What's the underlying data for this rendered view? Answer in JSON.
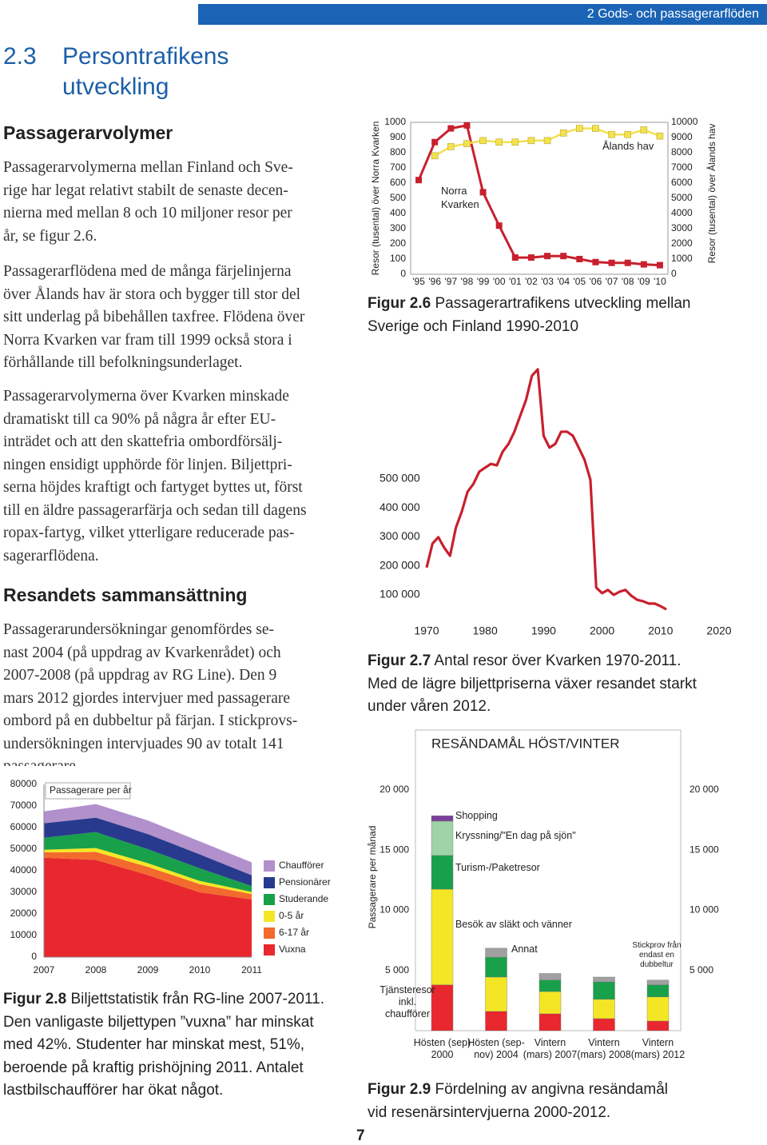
{
  "header": {
    "section": "2 Gods- och passagerarflöden"
  },
  "title": {
    "number": "2.3",
    "text": "Persontrafikens utveckling"
  },
  "sections": [
    {
      "heading": "Passagerarvolymer",
      "paragraphs": [
        [
          "Passagerarvolymerna mellan Finland och Sve-",
          "rige har legat relativt stabilt de senaste decen-",
          "nierna med mellan 8 och 10 miljoner resor per",
          "år, se figur 2.6."
        ],
        [
          "Passagerarflödena med de många färjelinjerna",
          "över Ålands hav är stora och bygger till stor del",
          "sitt underlag på bibehållen taxfree. Flödena över",
          "Norra Kvarken var fram till 1999 också stora i",
          "förhållande till befolkningsunderlaget."
        ],
        [
          "Passagerarvolymerna över Kvarken minskade",
          "dramatiskt till ca 90% på några år efter EU-",
          "inträdet och att den skattefria ombordförsälj-",
          "ningen ensidigt upphörde för linjen. Biljettpri-",
          "serna höjdes kraftigt och fartyget byttes ut, först",
          "till en äldre passagerarfärja och sedan till dagens",
          "ropax-fartyg, vilket ytterligare reducerade pas-",
          "sagerarflödena."
        ]
      ]
    },
    {
      "heading": "Resandets sammansättning",
      "paragraphs": [
        [
          "Passagerarundersökningar genomfördes se-",
          "nast 2004 (på uppdrag av Kvarkenrådet) och",
          "2007-2008 (på uppdrag av RG Line). Den 9",
          "mars 2012 gjordes intervjuer med passagerare",
          "ombord på en dubbeltur på färjan. I stickprovs-",
          "undersökningen intervjuades 90 av totalt 141",
          "passagerare."
        ]
      ]
    }
  ],
  "chart_data": [
    {
      "type": "line",
      "ylabel": "Resor (tusental) över Norra Kvarken",
      "y2label": "Resor (tusental) över Ålands hav",
      "categories": [
        "'95",
        "'96",
        "'97",
        "'98",
        "'99",
        "'00",
        "'01",
        "'02",
        "'03",
        "'04",
        "'05",
        "'06",
        "'07",
        "'08",
        "'09",
        "'10"
      ],
      "ylim": [
        0,
        1000
      ],
      "yticks": [
        0,
        100,
        200,
        300,
        400,
        500,
        600,
        700,
        800,
        900,
        1000
      ],
      "y2lim": [
        0,
        10000
      ],
      "y2ticks": [
        0,
        1000,
        2000,
        3000,
        4000,
        5000,
        6000,
        7000,
        8000,
        9000,
        10000
      ],
      "series": [
        {
          "name": "Norra Kvarken",
          "color": "#c8202e",
          "values": [
            620,
            870,
            960,
            980,
            540,
            320,
            110,
            110,
            120,
            120,
            100,
            80,
            75,
            75,
            65,
            60
          ]
        },
        {
          "name": "Ålands hav",
          "color": "#f3e24e",
          "axis": "y2",
          "values": [
            null,
            7800,
            8400,
            8600,
            8800,
            8700,
            8700,
            8800,
            8800,
            9300,
            9600,
            9600,
            9200,
            9200,
            9500,
            9100
          ]
        }
      ]
    },
    {
      "type": "line",
      "x": [
        1970,
        1971,
        1972,
        1973,
        1974,
        1975,
        1976,
        1977,
        1978,
        1979,
        1980,
        1981,
        1982,
        1983,
        1984,
        1985,
        1986,
        1987,
        1988,
        1989,
        1990,
        1991,
        1992,
        1993,
        1994,
        1995,
        1996,
        1997,
        1998,
        1999,
        2000,
        2001,
        2002,
        2003,
        2004,
        2005,
        2006,
        2007,
        2008,
        2009,
        2010,
        2011
      ],
      "values": [
        194000,
        277000,
        299000,
        263000,
        235000,
        332000,
        387000,
        456000,
        483000,
        525000,
        539000,
        552000,
        547000,
        594000,
        621000,
        663000,
        718000,
        773000,
        856000,
        878000,
        649000,
        608000,
        621000,
        663000,
        663000,
        649000,
        608000,
        566000,
        497000,
        125000,
        106000,
        117000,
        100000,
        111000,
        117000,
        97000,
        83000,
        78000,
        70000,
        70000,
        61000,
        50000
      ],
      "color": "#c8202e",
      "xlim": [
        1970,
        2020
      ],
      "xticks": [
        1970,
        1980,
        1990,
        2000,
        2010,
        2020
      ],
      "ylim": [
        0,
        1000000
      ],
      "yticks": [
        {
          "value": 100000,
          "label": "100 000"
        },
        {
          "value": 200000,
          "label": "200 000"
        },
        {
          "value": 300000,
          "label": "300 000"
        },
        {
          "value": 400000,
          "label": "400 000"
        },
        {
          "value": 500000,
          "label": "500 000"
        }
      ]
    },
    {
      "type": "stacked_area",
      "title": "Passagerare per år",
      "x": [
        2007,
        2008,
        2009,
        2010,
        2011
      ],
      "xlim": [
        2007,
        2011
      ],
      "xticks": [
        2007,
        2008,
        2009,
        2010,
        2011
      ],
      "ylim": [
        0,
        80000
      ],
      "yticks": [
        0,
        10000,
        20000,
        30000,
        40000,
        50000,
        60000,
        70000,
        80000
      ],
      "legend": "right",
      "series": [
        {
          "name": "Vuxna",
          "color": "#e8272e",
          "values": [
            46000,
            45000,
            38000,
            30000,
            26700
          ]
        },
        {
          "name": "6-17 år",
          "color": "#f26a2e",
          "values": [
            2500,
            3700,
            3800,
            3800,
            2500
          ]
        },
        {
          "name": "0-5 år",
          "color": "#f5e625",
          "values": [
            1200,
            1800,
            1700,
            1500,
            1000
          ]
        },
        {
          "name": "Studerande",
          "color": "#19a04a",
          "values": [
            5600,
            7400,
            6500,
            5800,
            2700
          ]
        },
        {
          "name": "Pensionärer",
          "color": "#283a8e",
          "values": [
            6700,
            6700,
            7000,
            6500,
            5000
          ]
        },
        {
          "name": "Chaufförer",
          "color": "#b190cc",
          "values": [
            5500,
            6300,
            6300,
            6000,
            6000
          ]
        }
      ]
    },
    {
      "type": "stacked_bar",
      "title": "RESÄNDAMÅL HÖST/VINTER",
      "ylabel": "Passagerare per månad",
      "categories": [
        "Hösten (sep) 2000",
        "Hösten (sep-nov) 2004",
        "Vintern (mars) 2007",
        "Vintern (mars) 2008",
        "Vintern (mars) 2012"
      ],
      "ylim": [
        0,
        25000
      ],
      "yticks": [
        {
          "value": 5000,
          "label": "5 000"
        },
        {
          "value": 10000,
          "label": "10 000"
        },
        {
          "value": 15000,
          "label": "15 000"
        },
        {
          "value": 20000,
          "label": "20 000"
        }
      ],
      "annotations": [
        "Stickprov från endast en dubbeltur"
      ],
      "series": [
        {
          "name": "Tjänsteresor inkl. chaufförer",
          "color": "#e8272e",
          "values": [
            3800,
            1600,
            1400,
            1000,
            800
          ]
        },
        {
          "name": "Besök av släkt och vänner",
          "color": "#f5e625",
          "values": [
            7950,
            2850,
            1850,
            1600,
            2000
          ]
        },
        {
          "name": "Turism-/Paketresor",
          "color": "#19a04a",
          "values": [
            2800,
            1650,
            950,
            1450,
            1000
          ]
        },
        {
          "name": "Kryssning/\"En dag på sjön\"",
          "color": "#9fd4a6",
          "values": [
            2850,
            0,
            0,
            0,
            0
          ]
        },
        {
          "name": "Annat",
          "color": "#a0a0a0",
          "values": [
            0,
            750,
            550,
            400,
            400
          ]
        },
        {
          "name": "Shopping",
          "color": "#7b3f98",
          "values": [
            450,
            0,
            0,
            0,
            0
          ]
        }
      ]
    }
  ],
  "captions": [
    {
      "label": "Figur 2.6",
      "text": "Passagerartrafikens utveckling mellan Sverige och Finland 1990-2010"
    },
    {
      "label": "Figur 2.7",
      "text": "Antal resor över Kvarken 1970-2011. Med de lägre biljettpriserna växer resandet starkt under våren 2012."
    },
    {
      "label": "Figur 2.8",
      "text": "Biljettstatistik från RG-line 2007-2011. Den vanligaste biljettypen ”vuxna” har minskat med 42%. Studenter har minskat mest, 51%, beroende på kraftig prishöjning 2011. Antalet lastbilschaufförer har ökat något."
    },
    {
      "label": "Figur 2.9",
      "text": "Fördelning av angivna resändamål vid resenärsintervjuerna 2000-2012."
    }
  ],
  "page_number": "7"
}
